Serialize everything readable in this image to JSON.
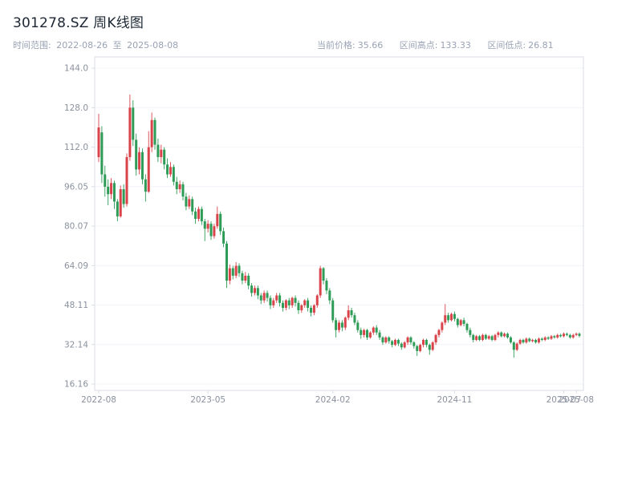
{
  "header": {
    "title": "301278.SZ 周K线图",
    "range": {
      "label": "时间范围:",
      "start": "2022-08-26",
      "to": "至",
      "end": "2025-08-08"
    },
    "stats": {
      "current_label": "当前价格:",
      "current": "35.66",
      "high_label": "区间高点:",
      "high": "133.33",
      "low_label": "区间低点:",
      "low": "26.81"
    }
  },
  "colors": {
    "up": "#d9434a",
    "down": "#2e9b57",
    "title_text": "#1c2733",
    "subtitle_text": "#99a2b4",
    "axis_text": "#8a919e",
    "border": "#d9dde6",
    "grid": "#f2f4f9"
  },
  "chart_data": {
    "type": "candlestick",
    "title": "301278.SZ 周K线图",
    "symbol": "301278.SZ",
    "interval": "weekly",
    "ylim": [
      16.16,
      144.0
    ],
    "grid": "faint-horizontal",
    "y_ticks": [
      "144.0",
      "128.0",
      "112.0",
      "96.05",
      "80.07",
      "64.09",
      "48.11",
      "32.14",
      "16.16"
    ],
    "x_ticks": [
      {
        "label": "2022-08",
        "index": 0
      },
      {
        "label": "2023-05",
        "index": 35
      },
      {
        "label": "2024-02",
        "index": 75
      },
      {
        "label": "2024-11",
        "index": 114
      },
      {
        "label": "2025-07",
        "index": 149
      },
      {
        "label": "2025-08",
        "index": 153
      }
    ],
    "candles_format": [
      "open",
      "high",
      "low",
      "close"
    ],
    "candles": [
      [
        108.0,
        125.5,
        106.0,
        120.0
      ],
      [
        118.0,
        120.5,
        97.5,
        101.0
      ],
      [
        101.0,
        104.5,
        92.0,
        96.0
      ],
      [
        96.0,
        99.0,
        88.5,
        93.0
      ],
      [
        93.0,
        99.5,
        91.0,
        97.5
      ],
      [
        97.5,
        98.5,
        87.0,
        90.0
      ],
      [
        90.0,
        91.0,
        82.0,
        84.0
      ],
      [
        84.0,
        96.5,
        83.5,
        95.0
      ],
      [
        95.0,
        97.0,
        87.5,
        89.0
      ],
      [
        89.0,
        109.5,
        88.0,
        108.0
      ],
      [
        108.0,
        133.33,
        106.5,
        128.0
      ],
      [
        128.0,
        131.0,
        112.5,
        115.0
      ],
      [
        115.0,
        117.5,
        100.5,
        103.0
      ],
      [
        103.0,
        112.0,
        101.0,
        110.0
      ],
      [
        110.0,
        111.5,
        97.0,
        99.0
      ],
      [
        99.0,
        101.0,
        90.0,
        94.0
      ],
      [
        94.0,
        118.5,
        93.5,
        112.0
      ],
      [
        112.0,
        126.0,
        110.0,
        123.0
      ],
      [
        123.0,
        124.0,
        111.0,
        113.0
      ],
      [
        113.0,
        115.5,
        106.0,
        108.0
      ],
      [
        108.0,
        113.0,
        105.5,
        111.0
      ],
      [
        111.0,
        112.0,
        103.0,
        105.0
      ],
      [
        105.0,
        107.5,
        99.5,
        101.0
      ],
      [
        101.0,
        106.0,
        100.0,
        104.0
      ],
      [
        104.0,
        105.0,
        96.5,
        98.0
      ],
      [
        98.0,
        100.0,
        93.0,
        95.0
      ],
      [
        95.0,
        98.5,
        93.5,
        97.0
      ],
      [
        97.0,
        98.0,
        90.5,
        92.0
      ],
      [
        92.0,
        93.5,
        86.5,
        88.0
      ],
      [
        88.0,
        92.5,
        87.0,
        91.0
      ],
      [
        91.0,
        92.0,
        84.5,
        86.0
      ],
      [
        86.0,
        87.5,
        81.0,
        83.0
      ],
      [
        83.0,
        88.0,
        82.0,
        87.0
      ],
      [
        87.0,
        88.0,
        80.5,
        82.0
      ],
      [
        82.0,
        83.0,
        74.0,
        79.0
      ],
      [
        79.0,
        82.5,
        77.5,
        81.0
      ],
      [
        81.0,
        82.0,
        74.5,
        76.0
      ],
      [
        76.0,
        81.0,
        75.0,
        80.0
      ],
      [
        80.0,
        88.0,
        79.0,
        85.0
      ],
      [
        85.0,
        86.0,
        76.5,
        78.0
      ],
      [
        78.0,
        79.5,
        71.5,
        73.0
      ],
      [
        73.0,
        74.0,
        55.0,
        58.0
      ],
      [
        58.0,
        64.5,
        56.5,
        63.0
      ],
      [
        63.0,
        64.0,
        58.5,
        60.0
      ],
      [
        60.0,
        65.5,
        59.0,
        64.0
      ],
      [
        64.0,
        65.0,
        59.5,
        61.0
      ],
      [
        61.0,
        62.0,
        56.5,
        58.0
      ],
      [
        58.0,
        61.5,
        57.0,
        60.0
      ],
      [
        60.0,
        61.0,
        54.5,
        56.0
      ],
      [
        56.0,
        57.0,
        51.5,
        53.0
      ],
      [
        53.0,
        56.0,
        52.0,
        55.0
      ],
      [
        55.0,
        56.0,
        50.5,
        52.0
      ],
      [
        52.0,
        53.0,
        48.5,
        50.0
      ],
      [
        50.0,
        54.0,
        49.0,
        53.0
      ],
      [
        53.0,
        54.0,
        49.5,
        51.0
      ],
      [
        51.0,
        52.0,
        46.5,
        48.0
      ],
      [
        48.0,
        51.0,
        47.0,
        50.0
      ],
      [
        50.0,
        53.0,
        49.0,
        52.0
      ],
      [
        52.0,
        53.0,
        47.5,
        49.0
      ],
      [
        49.0,
        50.0,
        45.5,
        47.0
      ],
      [
        47.0,
        50.5,
        46.0,
        50.0
      ],
      [
        50.0,
        51.0,
        46.5,
        48.0
      ],
      [
        48.0,
        51.5,
        47.0,
        51.0
      ],
      [
        51.0,
        52.0,
        47.5,
        49.0
      ],
      [
        49.0,
        50.0,
        44.5,
        46.0
      ],
      [
        46.0,
        48.5,
        45.0,
        48.0
      ],
      [
        48.0,
        50.5,
        47.0,
        50.0
      ],
      [
        50.0,
        51.0,
        45.5,
        47.0
      ],
      [
        47.0,
        48.0,
        43.5,
        45.0
      ],
      [
        45.0,
        48.5,
        44.0,
        48.0
      ],
      [
        48.0,
        52.5,
        47.0,
        52.0
      ],
      [
        52.0,
        64.0,
        51.0,
        63.0
      ],
      [
        63.0,
        63.5,
        56.5,
        58.0
      ],
      [
        58.0,
        59.0,
        52.5,
        54.0
      ],
      [
        54.0,
        55.0,
        48.5,
        50.0
      ],
      [
        50.0,
        51.0,
        41.0,
        42.0
      ],
      [
        42.0,
        43.0,
        35.0,
        38.0
      ],
      [
        38.0,
        42.0,
        37.0,
        41.0
      ],
      [
        41.0,
        42.0,
        37.5,
        39.0
      ],
      [
        39.0,
        43.5,
        38.0,
        43.0
      ],
      [
        43.0,
        48.0,
        42.0,
        46.0
      ],
      [
        46.0,
        47.0,
        43.0,
        44.0
      ],
      [
        44.0,
        45.0,
        40.0,
        41.0
      ],
      [
        41.0,
        42.0,
        37.0,
        38.0
      ],
      [
        38.0,
        39.0,
        34.5,
        36.0
      ],
      [
        36.0,
        38.5,
        35.0,
        38.0
      ],
      [
        38.0,
        38.5,
        34.0,
        35.0
      ],
      [
        35.0,
        37.5,
        34.5,
        37.0
      ],
      [
        37.0,
        39.5,
        36.0,
        39.0
      ],
      [
        39.0,
        40.0,
        36.0,
        37.0
      ],
      [
        37.0,
        38.0,
        34.0,
        35.0
      ],
      [
        35.0,
        35.5,
        32.0,
        33.0
      ],
      [
        33.0,
        35.5,
        32.5,
        35.0
      ],
      [
        35.0,
        35.5,
        32.5,
        33.5
      ],
      [
        33.5,
        34.0,
        31.0,
        32.0
      ],
      [
        32.0,
        34.5,
        31.5,
        34.0
      ],
      [
        34.0,
        34.5,
        31.5,
        32.5
      ],
      [
        32.5,
        33.0,
        30.0,
        31.0
      ],
      [
        31.0,
        33.5,
        30.5,
        33.0
      ],
      [
        33.0,
        35.5,
        32.0,
        35.0
      ],
      [
        35.0,
        35.5,
        32.0,
        33.0
      ],
      [
        33.0,
        33.5,
        30.5,
        31.5
      ],
      [
        31.5,
        32.0,
        27.5,
        29.5
      ],
      [
        29.5,
        32.5,
        29.0,
        32.0
      ],
      [
        32.0,
        34.5,
        31.0,
        34.0
      ],
      [
        34.0,
        34.5,
        31.0,
        32.0
      ],
      [
        32.0,
        32.5,
        28.0,
        30.0
      ],
      [
        30.0,
        33.5,
        29.5,
        33.0
      ],
      [
        33.0,
        36.5,
        32.0,
        36.0
      ],
      [
        36.0,
        38.5,
        35.0,
        38.0
      ],
      [
        38.0,
        41.5,
        37.0,
        41.0
      ],
      [
        41.0,
        48.5,
        40.0,
        44.0
      ],
      [
        44.0,
        45.0,
        41.0,
        42.0
      ],
      [
        42.0,
        45.0,
        41.5,
        44.5
      ],
      [
        44.5,
        45.5,
        41.5,
        42.5
      ],
      [
        42.5,
        43.0,
        39.0,
        40.0
      ],
      [
        40.0,
        42.5,
        39.5,
        42.0
      ],
      [
        42.0,
        43.0,
        39.5,
        40.5
      ],
      [
        40.5,
        41.0,
        37.0,
        38.0
      ],
      [
        38.0,
        39.0,
        35.0,
        36.0
      ],
      [
        36.0,
        36.5,
        33.0,
        34.0
      ],
      [
        34.0,
        36.0,
        33.5,
        35.5
      ],
      [
        35.5,
        36.0,
        33.5,
        34.0
      ],
      [
        34.0,
        36.5,
        33.5,
        36.0
      ],
      [
        36.0,
        36.5,
        34.0,
        34.5
      ],
      [
        34.5,
        36.0,
        34.0,
        35.5
      ],
      [
        35.5,
        36.0,
        33.5,
        34.0
      ],
      [
        34.0,
        36.5,
        33.5,
        36.0
      ],
      [
        36.0,
        37.5,
        35.0,
        37.0
      ],
      [
        37.0,
        37.5,
        35.0,
        35.5
      ],
      [
        35.5,
        37.0,
        35.0,
        36.5
      ],
      [
        36.5,
        37.0,
        34.5,
        35.0
      ],
      [
        35.0,
        35.5,
        32.5,
        33.0
      ],
      [
        33.0,
        33.5,
        26.81,
        30.0
      ],
      [
        30.0,
        33.0,
        29.5,
        32.5
      ],
      [
        32.5,
        34.5,
        32.0,
        34.0
      ],
      [
        34.0,
        34.5,
        32.5,
        33.0
      ],
      [
        33.0,
        35.0,
        32.5,
        34.5
      ],
      [
        34.5,
        35.0,
        33.0,
        33.5
      ],
      [
        33.5,
        34.5,
        33.0,
        34.0
      ],
      [
        34.0,
        34.5,
        32.5,
        33.0
      ],
      [
        33.0,
        35.0,
        32.5,
        34.5
      ],
      [
        34.5,
        35.0,
        33.5,
        34.0
      ],
      [
        34.0,
        35.5,
        33.5,
        35.0
      ],
      [
        35.0,
        35.5,
        34.0,
        34.5
      ],
      [
        34.5,
        36.0,
        34.0,
        35.5
      ],
      [
        35.5,
        36.0,
        34.5,
        35.0
      ],
      [
        35.0,
        36.5,
        34.5,
        36.0
      ],
      [
        36.0,
        36.5,
        35.0,
        35.5
      ],
      [
        35.5,
        37.0,
        35.0,
        36.5
      ],
      [
        36.5,
        37.0,
        35.5,
        36.0
      ],
      [
        36.0,
        36.5,
        34.5,
        35.0
      ],
      [
        35.0,
        36.5,
        34.5,
        36.0
      ],
      [
        36.0,
        37.0,
        35.5,
        36.5
      ],
      [
        36.5,
        37.0,
        35.0,
        35.66
      ]
    ]
  }
}
